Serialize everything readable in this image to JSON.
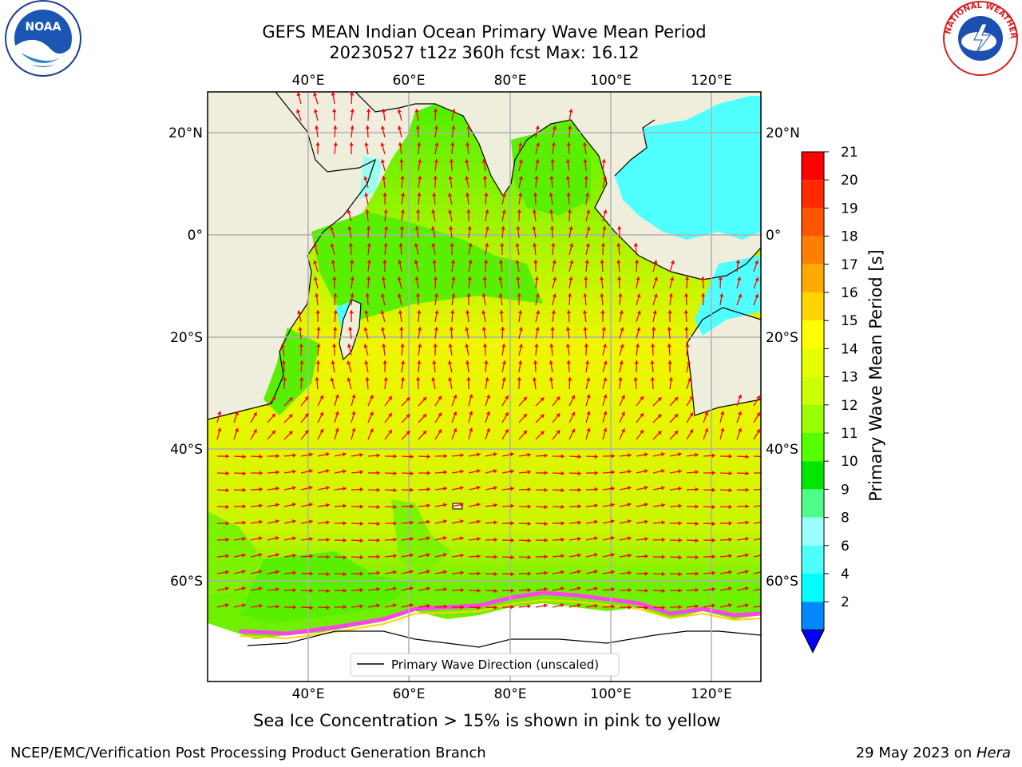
{
  "title_line1": "GEFS MEAN Indian Ocean Primary Wave Mean Period",
  "title_line2": "20230527 t12z 360h fcst   Max: 16.12",
  "top_lon_labels": [
    "40°E",
    "60°E",
    "80°E",
    "100°E",
    "120°E"
  ],
  "bottom_lon_labels": [
    "40°E",
    "60°E",
    "80°E",
    "100°E",
    "120°E"
  ],
  "left_lat_labels": [
    "20°N",
    "0°",
    "20°S",
    "40°S",
    "60°S"
  ],
  "right_lat_labels": [
    "20°N",
    "0°",
    "20°S",
    "40°S",
    "60°S"
  ],
  "legend_text": "Primary Wave Direction (unscaled)",
  "subnote": "Sea Ice Concentration > 15% is shown in pink to yellow",
  "footer_left": "NCEP/EMC/Verification Post Processing Product Generation Branch",
  "footer_right_prefix": "29 May 2023 on ",
  "footer_right_machine": "Hera",
  "colorbar": {
    "label": "Primary Wave Mean Period [s]",
    "ticks": [
      "21",
      "20",
      "19",
      "18",
      "17",
      "16",
      "15",
      "14",
      "13",
      "12",
      "11",
      "10",
      "9",
      "8",
      "6",
      "4",
      "2"
    ],
    "colors": [
      "#ff0000",
      "#ff2a00",
      "#ff5500",
      "#ff8000",
      "#ffaa00",
      "#ffd400",
      "#ffff00",
      "#e6ff00",
      "#ccff00",
      "#99ff00",
      "#55ff00",
      "#00e600",
      "#4dff88",
      "#99ffff",
      "#4dffff",
      "#00ffff",
      "#0088ff"
    ],
    "extend_color": "#0000ff"
  },
  "map_colors": {
    "land": "#efeedd",
    "ocean_high": "#f0f500",
    "ocean_mid": "#c8f500",
    "ocean_low": "#4ef000",
    "ocean_cyan": "#50ffff",
    "ice_pink": "#ff44ee",
    "arrow": "#ff0000"
  },
  "logos": {
    "left_icon": "noaa-logo-icon",
    "left_text": "NOAA",
    "right_icon": "nws-logo-icon",
    "right_text": "NATIONAL WEATHER SERVICE"
  }
}
